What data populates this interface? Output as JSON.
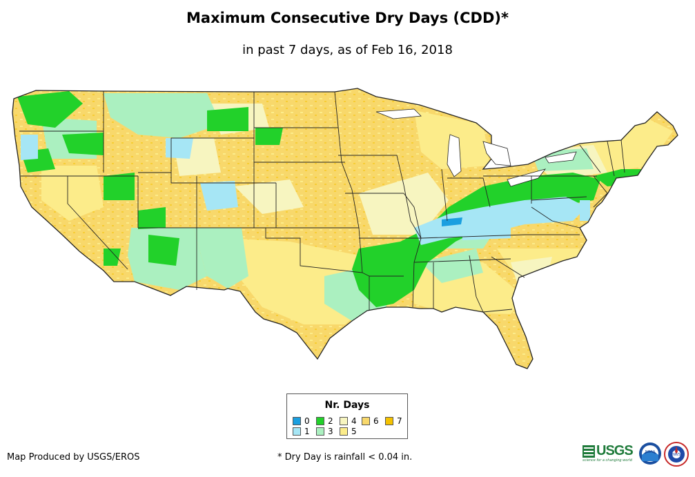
{
  "title": "Maximum Consecutive Dry Days (CDD)*",
  "subtitle": "in past 7 days, as of Feb 16, 2018",
  "legend": {
    "title": "Nr. Days",
    "items": [
      {
        "label": "0",
        "color": "#1a9fe0"
      },
      {
        "label": "1",
        "color": "#a6e6f5"
      },
      {
        "label": "2",
        "color": "#22d12a"
      },
      {
        "label": "3",
        "color": "#abf0c0"
      },
      {
        "label": "4",
        "color": "#f7f5c0"
      },
      {
        "label": "5",
        "color": "#fcec8a"
      },
      {
        "label": "6",
        "color": "#f8d86b"
      },
      {
        "label": "7",
        "color": "#f5c200"
      }
    ]
  },
  "credit": "Map Produced by USGS/EROS",
  "footnote": "* Dry Day is rainfall < 0.04 in.",
  "logos": {
    "usgs": "USGS",
    "usgs_tagline": "science for a changing world",
    "noaa": "NOAA",
    "nws": "NWS"
  },
  "map": {
    "region": "Contiguous United States",
    "land_color": "#f8d86b",
    "water_color": "#ffffff",
    "border_color": "#222222"
  }
}
